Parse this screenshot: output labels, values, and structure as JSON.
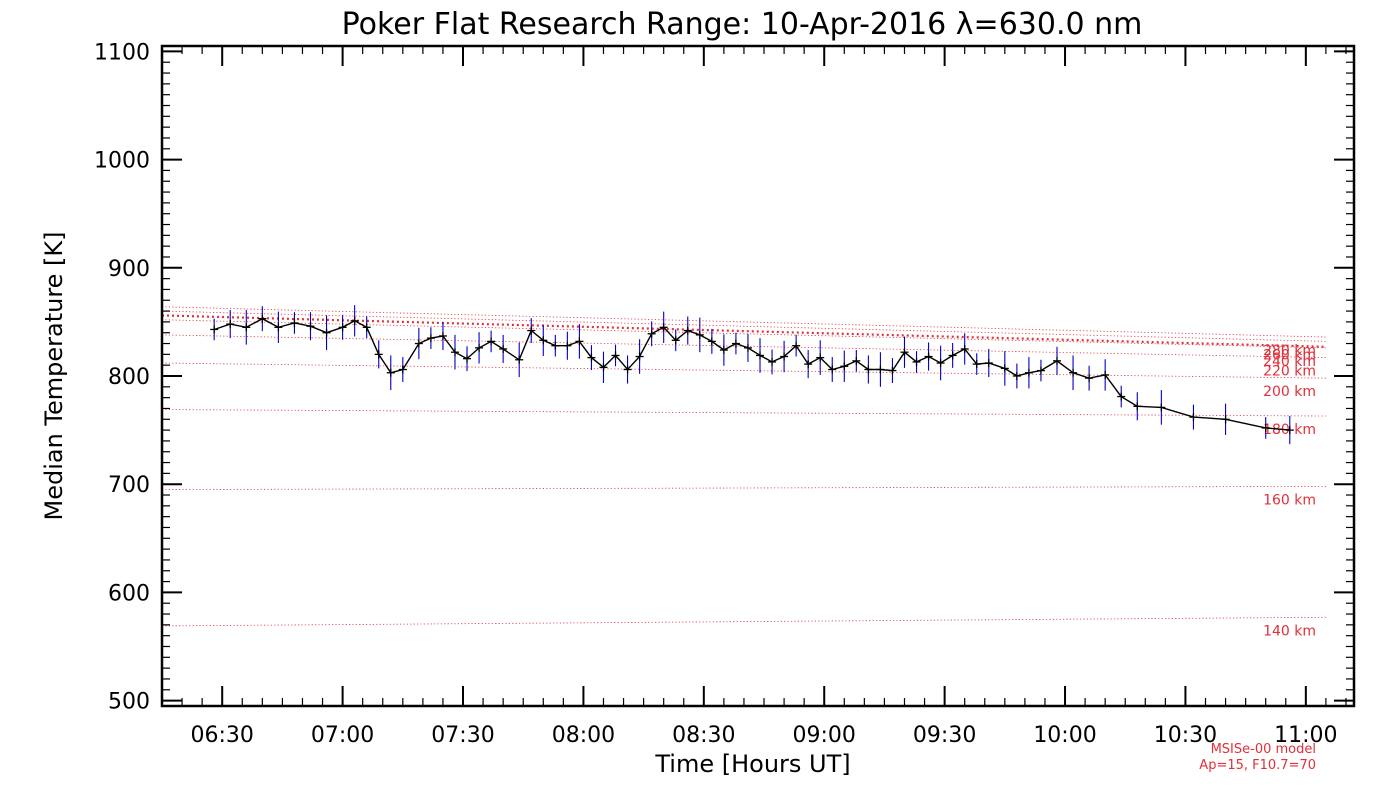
{
  "chart_data": {
    "type": "line",
    "title": "Poker Flat Research Range: 10-Apr-2016 λ=630.0 nm",
    "xlabel": "Time [Hours UT]",
    "ylabel": "Median Temperature [K]",
    "xlim": [
      "06:15",
      "11:12"
    ],
    "ylim": [
      495,
      1105
    ],
    "x_ticks": [
      "06:30",
      "07:00",
      "07:30",
      "08:00",
      "08:30",
      "09:00",
      "09:30",
      "10:00",
      "10:30",
      "11:00"
    ],
    "y_ticks": [
      500,
      600,
      700,
      800,
      900,
      1000,
      1100
    ],
    "grid": false,
    "colors": {
      "data_line": "#000000",
      "error_bars": "#0000cc",
      "model": "#e0303a"
    },
    "series": [
      {
        "x": [
          "06:28",
          "06:32",
          "06:36",
          "06:40",
          "06:44",
          "06:48",
          "06:52",
          "06:56",
          "07:00",
          "07:03",
          "07:06",
          "07:09",
          "07:12",
          "07:15",
          "07:19",
          "07:22",
          "07:25",
          "07:28",
          "07:31",
          "07:34",
          "07:37",
          "07:40",
          "07:44",
          "07:47",
          "07:50",
          "07:53",
          "07:56",
          "07:59",
          "08:02",
          "08:05",
          "08:08",
          "08:11",
          "08:14",
          "08:17",
          "08:20",
          "08:23",
          "08:26",
          "08:29",
          "08:32",
          "08:35",
          "08:38",
          "08:41",
          "08:44",
          "08:47",
          "08:50",
          "08:53",
          "08:56",
          "08:59",
          "09:02",
          "09:05",
          "09:08",
          "09:11",
          "09:14",
          "09:17",
          "09:20",
          "09:23",
          "09:26",
          "09:29",
          "09:32",
          "09:35",
          "09:38",
          "09:41",
          "09:45",
          "09:48",
          "09:51",
          "09:54",
          "09:58",
          "10:02",
          "10:06",
          "10:10",
          "10:14",
          "10:18",
          "10:24",
          "10:32",
          "10:40",
          "10:50",
          "10:56"
        ],
        "values": [
          843,
          848,
          845,
          853,
          845,
          849,
          846,
          840,
          845,
          851,
          845,
          820,
          803,
          806,
          830,
          835,
          837,
          822,
          816,
          826,
          832,
          825,
          815,
          842,
          833,
          828,
          828,
          832,
          817,
          808,
          819,
          806,
          818,
          839,
          845,
          833,
          842,
          838,
          832,
          824,
          830,
          826,
          819,
          813,
          818,
          828,
          811,
          817,
          806,
          809,
          814,
          806,
          806,
          805,
          822,
          813,
          818,
          812,
          819,
          825,
          811,
          812,
          807,
          800,
          803,
          805,
          814,
          803,
          798,
          801,
          781,
          772,
          771,
          762,
          760,
          752,
          750
        ]
      }
    ],
    "model_curves": [
      {
        "label": "140 km",
        "start": 569,
        "end": 577
      },
      {
        "label": "160 km",
        "start": 695,
        "end": 698
      },
      {
        "label": "180 km",
        "start": 769,
        "end": 763
      },
      {
        "label": "200 km",
        "start": 812,
        "end": 798
      },
      {
        "label": "220 km",
        "start": 838,
        "end": 817
      },
      {
        "label": "240 km",
        "start": 852,
        "end": 826
      },
      {
        "label": "260 km",
        "start": 860,
        "end": 832
      },
      {
        "label": "280 km",
        "start": 864,
        "end": 836
      }
    ],
    "model_fit": {
      "start": 856,
      "end": 827
    },
    "note_lines": [
      "MSISe-00 model",
      "Ap=15, F10.7=70"
    ]
  }
}
